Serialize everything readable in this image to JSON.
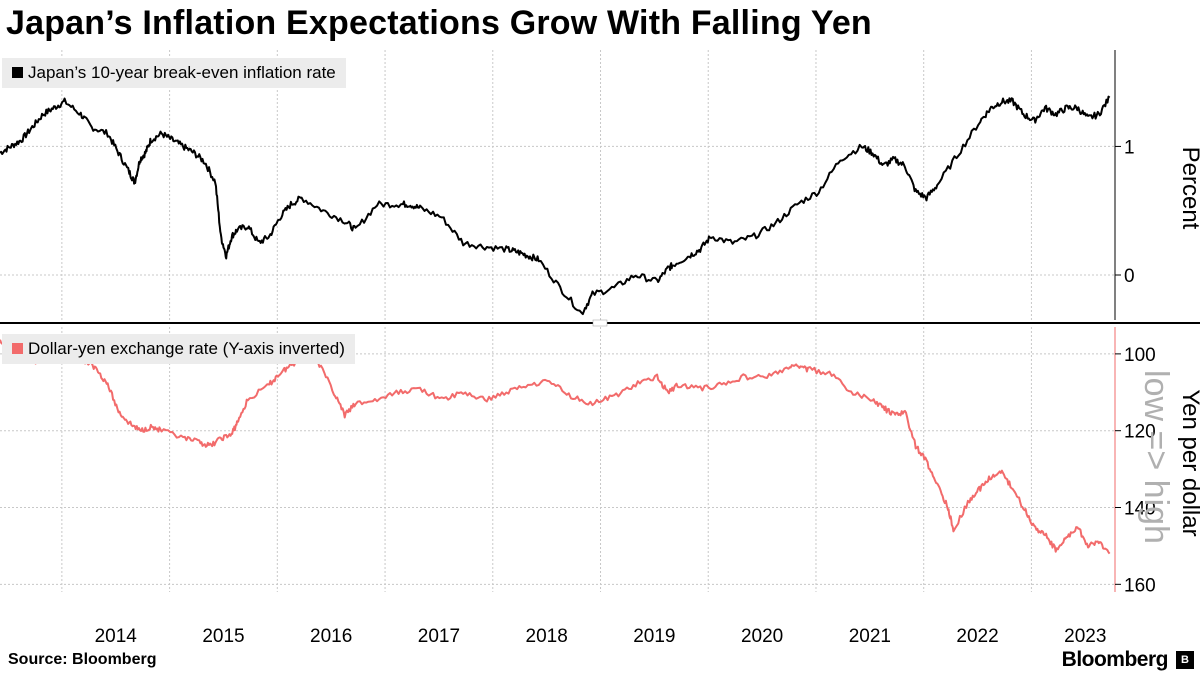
{
  "title": "Japan’s Inflation Expectations Grow With Falling Yen",
  "footer": {
    "source": "Source: Bloomberg",
    "brand": "Bloomberg"
  },
  "colors": {
    "series_top": "#000000",
    "series_bottom": "#f26b6b",
    "grid": "#c8c8c8",
    "legend_bg": "#ececec"
  },
  "chart_data": [
    {
      "type": "line",
      "legend": "Japan’s 10-year break-even inflation rate",
      "ylabel": "Percent",
      "yticks": [
        "1",
        "0"
      ],
      "ylim": [
        -0.35,
        1.75
      ],
      "inverted": false,
      "series": [
        {
          "name": "Japan’s 10-year break-even inflation rate",
          "x": [
            2013.5,
            2013.6,
            2013.7,
            2013.8,
            2013.9,
            2014.0,
            2014.1,
            2014.25,
            2014.35,
            2014.5,
            2014.6,
            2014.7,
            2014.75,
            2014.8,
            2014.85,
            2014.9,
            2015.0,
            2015.1,
            2015.2,
            2015.3,
            2015.4,
            2015.5,
            2015.55,
            2015.6,
            2015.65,
            2015.7,
            2015.8,
            2015.9,
            2016.0,
            2016.1,
            2016.2,
            2016.3,
            2016.5,
            2016.7,
            2016.8,
            2017.0,
            2017.2,
            2017.3,
            2017.4,
            2017.6,
            2017.8,
            2018.0,
            2018.2,
            2018.3,
            2018.4,
            2018.5,
            2018.7,
            2018.9,
            2019.0,
            2019.2,
            2019.4,
            2019.6,
            2019.7,
            2019.75,
            2019.9,
            2020.0,
            2020.1,
            2020.3,
            2020.5,
            2020.7,
            2020.9,
            2021.1,
            2021.3,
            2021.5,
            2021.6,
            2021.7,
            2021.8,
            2021.9,
            2022.0,
            2022.1,
            2022.2,
            2022.4,
            2022.6,
            2022.7,
            2022.8,
            2022.9,
            2023.0,
            2023.1,
            2023.2,
            2023.3,
            2023.4,
            2023.5,
            2023.6,
            2023.7,
            2023.8
          ],
          "values": [
            0.95,
            1.0,
            1.05,
            1.15,
            1.25,
            1.3,
            1.35,
            1.25,
            1.15,
            1.1,
            0.95,
            0.8,
            0.72,
            0.9,
            0.95,
            1.05,
            1.1,
            1.05,
            1.0,
            0.95,
            0.88,
            0.72,
            0.3,
            0.15,
            0.3,
            0.35,
            0.38,
            0.25,
            0.3,
            0.45,
            0.55,
            0.6,
            0.5,
            0.42,
            0.35,
            0.55,
            0.55,
            0.55,
            0.52,
            0.45,
            0.25,
            0.22,
            0.2,
            0.18,
            0.15,
            0.12,
            -0.1,
            -0.3,
            -0.15,
            -0.1,
            0.0,
            -0.05,
            0.05,
            0.08,
            0.15,
            0.2,
            0.3,
            0.25,
            0.3,
            0.4,
            0.55,
            0.65,
            0.9,
            1.0,
            0.95,
            0.85,
            0.9,
            0.85,
            0.65,
            0.6,
            0.7,
            0.95,
            1.2,
            1.3,
            1.35,
            1.35,
            1.25,
            1.2,
            1.3,
            1.25,
            1.3,
            1.3,
            1.22,
            1.25,
            1.38
          ]
        }
      ]
    },
    {
      "type": "line",
      "legend": "Dollar-yen exchange rate (Y-axis inverted)",
      "ylabel": "Yen per dollar",
      "side_note": "low => high",
      "yticks": [
        "100",
        "120",
        "140",
        "160"
      ],
      "ylim": [
        93,
        162
      ],
      "inverted": true,
      "series": [
        {
          "name": "Dollar-yen exchange rate",
          "x": [
            2013.5,
            2013.6,
            2013.7,
            2013.8,
            2013.9,
            2014.0,
            2014.2,
            2014.3,
            2014.4,
            2014.5,
            2014.6,
            2014.7,
            2014.8,
            2014.9,
            2015.0,
            2015.2,
            2015.35,
            2015.45,
            2015.55,
            2015.65,
            2015.7,
            2015.8,
            2016.0,
            2016.1,
            2016.2,
            2016.3,
            2016.35,
            2016.45,
            2016.6,
            2016.7,
            2016.8,
            2017.0,
            2017.2,
            2017.4,
            2017.6,
            2017.8,
            2018.0,
            2018.2,
            2018.4,
            2018.6,
            2018.8,
            2019.0,
            2019.2,
            2019.4,
            2019.6,
            2019.7,
            2019.8,
            2020.0,
            2020.2,
            2020.4,
            2020.6,
            2020.8,
            2020.9,
            2021.0,
            2021.2,
            2021.4,
            2021.6,
            2021.7,
            2021.8,
            2021.9,
            2022.0,
            2022.1,
            2022.2,
            2022.3,
            2022.35,
            2022.5,
            2022.6,
            2022.7,
            2022.8,
            2022.9,
            2023.0,
            2023.1,
            2023.2,
            2023.3,
            2023.4,
            2023.5,
            2023.6,
            2023.7,
            2023.8
          ],
          "values": [
            97,
            99,
            101,
            102,
            102,
            101,
            101,
            102,
            104,
            108,
            115,
            118,
            120,
            119,
            120,
            122,
            123,
            124,
            122,
            121,
            118,
            112,
            108,
            105,
            103,
            101,
            100,
            102,
            110,
            116,
            113,
            112,
            110,
            109,
            112,
            110,
            112,
            110,
            108,
            107,
            111,
            113,
            111,
            108,
            106,
            110,
            108,
            109,
            108,
            106,
            106,
            104,
            103,
            104,
            105,
            110,
            112,
            114,
            116,
            115,
            124,
            128,
            134,
            140,
            146,
            138,
            135,
            132,
            131,
            135,
            140,
            145,
            147,
            151,
            148,
            145,
            150,
            149,
            152
          ]
        }
      ]
    }
  ],
  "x_axis": {
    "labels": [
      "2014",
      "2015",
      "2016",
      "2017",
      "2018",
      "2019",
      "2020",
      "2021",
      "2022",
      "2023"
    ],
    "range": [
      2013.5,
      2023.85
    ]
  }
}
